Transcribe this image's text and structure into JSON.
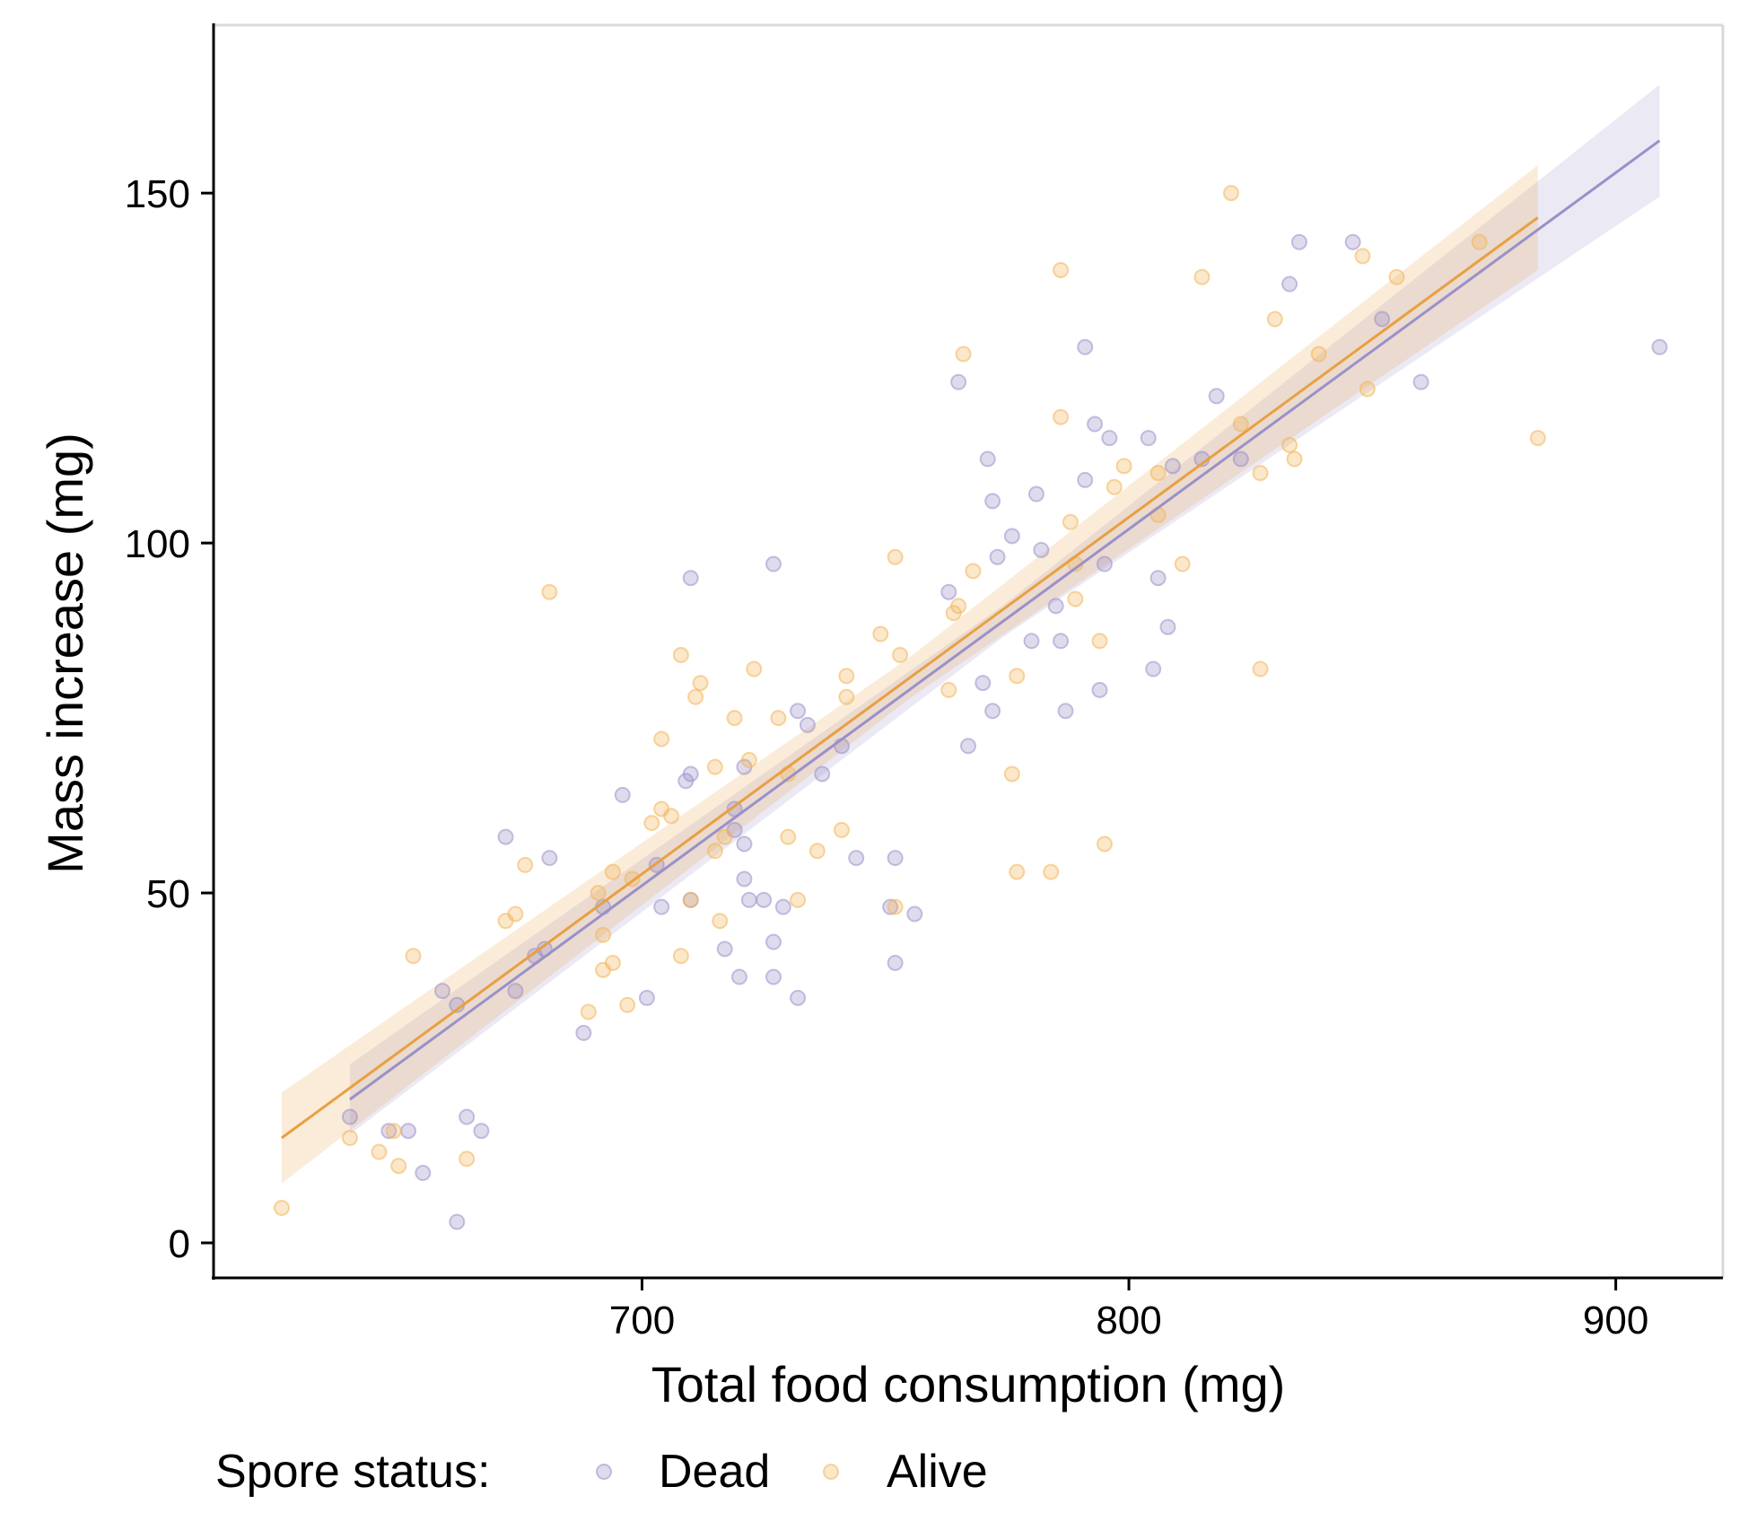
{
  "chart_data": {
    "type": "scatter",
    "xlabel": "Total food consumption (mg)",
    "ylabel": "Mass increase (mg)",
    "xlim": [
      612,
      922
    ],
    "ylim": [
      -5,
      174
    ],
    "xticks": [
      700,
      800,
      900
    ],
    "yticks": [
      0,
      50,
      100,
      150
    ],
    "grid": false,
    "legend": {
      "title": "Spore status:",
      "placement": "bottom-left"
    },
    "series": [
      {
        "name": "Dead",
        "color": "#9a90c8",
        "points": [
          [
            640,
            18
          ],
          [
            648,
            16
          ],
          [
            652,
            16
          ],
          [
            655,
            10
          ],
          [
            659,
            36
          ],
          [
            662,
            34
          ],
          [
            664,
            18
          ],
          [
            667,
            16
          ],
          [
            662,
            3
          ],
          [
            672,
            58
          ],
          [
            674,
            36
          ],
          [
            678,
            41
          ],
          [
            681,
            55
          ],
          [
            680,
            42
          ],
          [
            688,
            30
          ],
          [
            692,
            48
          ],
          [
            696,
            64
          ],
          [
            701,
            35
          ],
          [
            703,
            54
          ],
          [
            704,
            48
          ],
          [
            709,
            66
          ],
          [
            710,
            67
          ],
          [
            710,
            49
          ],
          [
            710,
            95
          ],
          [
            717,
            42
          ],
          [
            719,
            62
          ],
          [
            719,
            59
          ],
          [
            720,
            38
          ],
          [
            721,
            52
          ],
          [
            721,
            57
          ],
          [
            721,
            68
          ],
          [
            722,
            49
          ],
          [
            725,
            49
          ],
          [
            727,
            43
          ],
          [
            727,
            38
          ],
          [
            727,
            97
          ],
          [
            729,
            48
          ],
          [
            732,
            35
          ],
          [
            732,
            76
          ],
          [
            734,
            74
          ],
          [
            737,
            67
          ],
          [
            741,
            71
          ],
          [
            744,
            55
          ],
          [
            751,
            48
          ],
          [
            752,
            40
          ],
          [
            752,
            55
          ],
          [
            756,
            47
          ],
          [
            763,
            93
          ],
          [
            765,
            123
          ],
          [
            767,
            71
          ],
          [
            770,
            80
          ],
          [
            771,
            112
          ],
          [
            772,
            106
          ],
          [
            772,
            76
          ],
          [
            773,
            98
          ],
          [
            776,
            101
          ],
          [
            780,
            86
          ],
          [
            781,
            107
          ],
          [
            782,
            99
          ],
          [
            785,
            91
          ],
          [
            786,
            86
          ],
          [
            787,
            76
          ],
          [
            791,
            109
          ],
          [
            791,
            128
          ],
          [
            793,
            117
          ],
          [
            794,
            79
          ],
          [
            795,
            97
          ],
          [
            796,
            115
          ],
          [
            804,
            115
          ],
          [
            805,
            82
          ],
          [
            806,
            95
          ],
          [
            808,
            88
          ],
          [
            809,
            111
          ],
          [
            815,
            112
          ],
          [
            818,
            121
          ],
          [
            823,
            112
          ],
          [
            833,
            137
          ],
          [
            835,
            143
          ],
          [
            846,
            143
          ],
          [
            852,
            132
          ],
          [
            860,
            123
          ],
          [
            909,
            128
          ]
        ]
      },
      {
        "name": "Alive",
        "color": "#f2b45a",
        "points": [
          [
            626,
            5
          ],
          [
            640,
            15
          ],
          [
            646,
            13
          ],
          [
            649,
            16
          ],
          [
            650,
            11
          ],
          [
            653,
            41
          ],
          [
            664,
            12
          ],
          [
            672,
            46
          ],
          [
            674,
            47
          ],
          [
            676,
            54
          ],
          [
            681,
            93
          ],
          [
            689,
            33
          ],
          [
            691,
            50
          ],
          [
            692,
            39
          ],
          [
            692,
            44
          ],
          [
            694,
            40
          ],
          [
            694,
            53
          ],
          [
            697,
            34
          ],
          [
            698,
            52
          ],
          [
            702,
            60
          ],
          [
            704,
            62
          ],
          [
            704,
            72
          ],
          [
            706,
            61
          ],
          [
            708,
            84
          ],
          [
            708,
            41
          ],
          [
            710,
            49
          ],
          [
            711,
            78
          ],
          [
            712,
            80
          ],
          [
            715,
            68
          ],
          [
            715,
            56
          ],
          [
            716,
            46
          ],
          [
            717,
            58
          ],
          [
            719,
            75
          ],
          [
            722,
            69
          ],
          [
            723,
            82
          ],
          [
            728,
            75
          ],
          [
            730,
            58
          ],
          [
            730,
            67
          ],
          [
            732,
            49
          ],
          [
            736,
            56
          ],
          [
            741,
            59
          ],
          [
            742,
            78
          ],
          [
            742,
            81
          ],
          [
            749,
            87
          ],
          [
            752,
            98
          ],
          [
            753,
            84
          ],
          [
            752,
            48
          ],
          [
            766,
            127
          ],
          [
            763,
            79
          ],
          [
            764,
            90
          ],
          [
            765,
            91
          ],
          [
            768,
            96
          ],
          [
            776,
            67
          ],
          [
            777,
            53
          ],
          [
            777,
            81
          ],
          [
            784,
            53
          ],
          [
            786,
            118
          ],
          [
            786,
            139
          ],
          [
            788,
            103
          ],
          [
            789,
            97
          ],
          [
            789,
            92
          ],
          [
            794,
            86
          ],
          [
            795,
            57
          ],
          [
            797,
            108
          ],
          [
            799,
            111
          ],
          [
            806,
            104
          ],
          [
            806,
            110
          ],
          [
            811,
            97
          ],
          [
            815,
            138
          ],
          [
            821,
            150
          ],
          [
            823,
            117
          ],
          [
            827,
            110
          ],
          [
            827,
            82
          ],
          [
            830,
            132
          ],
          [
            833,
            114
          ],
          [
            834,
            112
          ],
          [
            839,
            127
          ],
          [
            848,
            141
          ],
          [
            849,
            122
          ],
          [
            855,
            138
          ],
          [
            872,
            143
          ],
          [
            884,
            115
          ]
        ]
      }
    ],
    "fits": [
      {
        "series": "Dead",
        "color": "#9a90c8",
        "x": [
          640,
          909
        ],
        "y": [
          20.5,
          157.5
        ],
        "band_halfwidth": [
          5,
          8
        ]
      },
      {
        "series": "Alive",
        "color": "#e8a040",
        "x": [
          626,
          884
        ],
        "y": [
          15,
          146.5
        ],
        "band_halfwidth": [
          6.5,
          7.5
        ]
      }
    ]
  }
}
